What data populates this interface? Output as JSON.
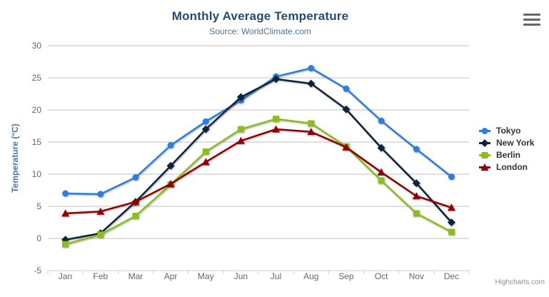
{
  "chart_data": {
    "type": "line",
    "title": "Monthly Average Temperature",
    "subtitle": "Source: WorldClimate.com",
    "categories": [
      "Jan",
      "Feb",
      "Mar",
      "Apr",
      "May",
      "Jun",
      "Jul",
      "Aug",
      "Sep",
      "Oct",
      "Nov",
      "Dec"
    ],
    "xlabel": "",
    "ylabel": "Temperature (°C)",
    "ylim": [
      -5,
      30
    ],
    "ytick_interval": 5,
    "grid": true,
    "legend_position": "right",
    "series": [
      {
        "name": "Tokyo",
        "marker": "circle",
        "color": "#2f7ed8",
        "values": [
          7.0,
          6.9,
          9.5,
          14.5,
          18.2,
          21.5,
          25.2,
          26.5,
          23.3,
          18.3,
          13.9,
          9.6
        ]
      },
      {
        "name": "New York",
        "marker": "diamond",
        "color": "#0d233a",
        "values": [
          -0.2,
          0.8,
          5.7,
          11.3,
          17.0,
          22.0,
          24.8,
          24.1,
          20.1,
          14.1,
          8.6,
          2.5
        ]
      },
      {
        "name": "Berlin",
        "marker": "square",
        "color": "#8bbc21",
        "values": [
          -0.9,
          0.6,
          3.5,
          8.4,
          13.5,
          17.0,
          18.6,
          17.9,
          14.3,
          9.0,
          3.9,
          1.0
        ]
      },
      {
        "name": "London",
        "marker": "triangle",
        "color": "#910000",
        "values": [
          3.9,
          4.2,
          5.7,
          8.5,
          11.9,
          15.2,
          17.0,
          16.6,
          14.2,
          10.3,
          6.6,
          4.8
        ]
      }
    ],
    "colors": {
      "title": "#274b6d",
      "subtitle": "#4d759e",
      "axis_labels": "#666666",
      "axis_title": "#4d759e",
      "grid": "#c0c0c0",
      "axis_line": "#c0d0e0",
      "legend_text": "#333333",
      "credit": "#909090"
    }
  },
  "credit": {
    "label": "Highcharts.com"
  },
  "export_menu": {
    "icon": "hamburger-icon"
  }
}
